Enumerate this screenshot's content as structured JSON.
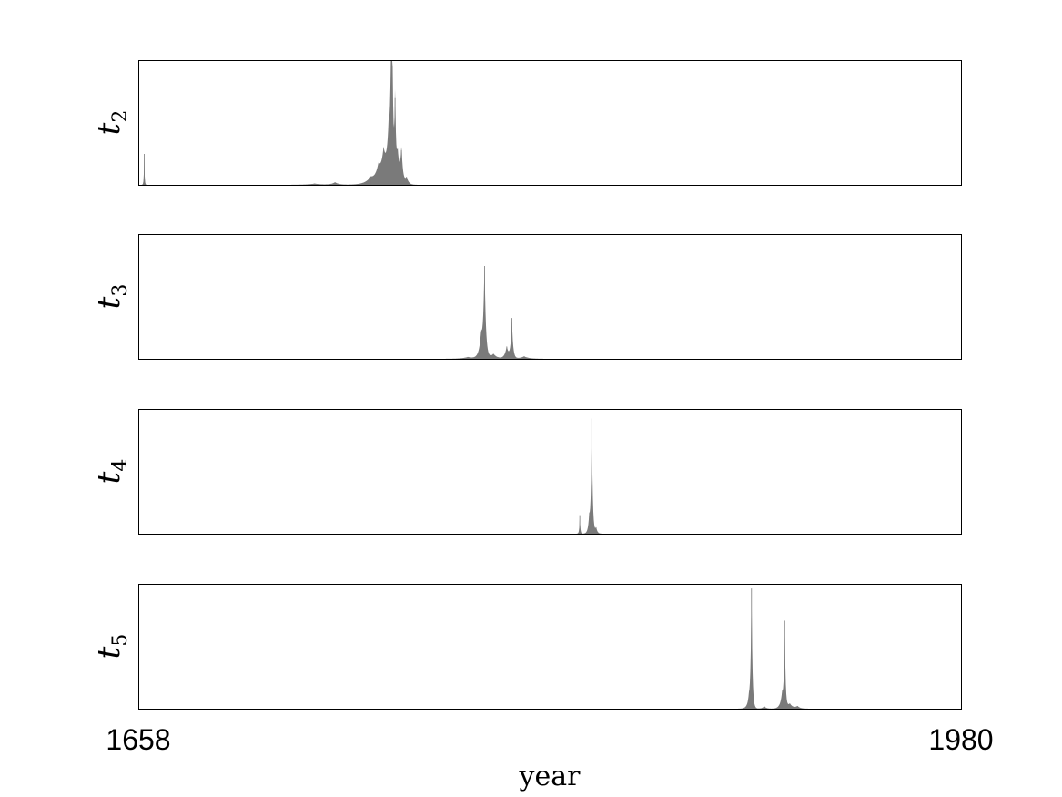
{
  "chart_data": {
    "type": "area",
    "xlabel": "year",
    "xlim": [
      1658,
      1980
    ],
    "x_tick_labels": [
      "1658",
      "1980"
    ],
    "fill_color": "#7a7a7a",
    "frame_color": "#000000",
    "grid": false,
    "legend": "none",
    "panels": [
      {
        "ylabel_base": "t",
        "ylabel_sub": "2",
        "ylim": [
          0,
          1
        ],
        "peaks": [
          {
            "year": 1660.3,
            "height": 0.25,
            "width": 0.15
          },
          {
            "year": 1727.0,
            "height": 0.01,
            "width": 3.0
          },
          {
            "year": 1735.0,
            "height": 0.02,
            "width": 1.5
          },
          {
            "year": 1749.0,
            "height": 0.05,
            "width": 2.5
          },
          {
            "year": 1752.0,
            "height": 0.12,
            "width": 1.5
          },
          {
            "year": 1754.0,
            "height": 0.22,
            "width": 1.2
          },
          {
            "year": 1756.0,
            "height": 0.38,
            "width": 1.0
          },
          {
            "year": 1757.0,
            "height": 1.0,
            "width": 0.45
          },
          {
            "year": 1757.4,
            "height": 0.85,
            "width": 0.3
          },
          {
            "year": 1758.5,
            "height": 0.7,
            "width": 0.3
          },
          {
            "year": 1759.5,
            "height": 0.25,
            "width": 0.9
          },
          {
            "year": 1761.0,
            "height": 0.28,
            "width": 0.5
          },
          {
            "year": 1763.0,
            "height": 0.06,
            "width": 0.8
          }
        ]
      },
      {
        "ylabel_base": "t",
        "ylabel_sub": "3",
        "ylim": [
          0,
          1
        ],
        "peaks": [
          {
            "year": 1787.0,
            "height": 0.015,
            "width": 2.5
          },
          {
            "year": 1792.2,
            "height": 0.18,
            "width": 0.9
          },
          {
            "year": 1793.5,
            "height": 0.75,
            "width": 0.5
          },
          {
            "year": 1797.0,
            "height": 0.04,
            "width": 1.5
          },
          {
            "year": 1802.2,
            "height": 0.1,
            "width": 0.8
          },
          {
            "year": 1804.2,
            "height": 0.33,
            "width": 0.45
          },
          {
            "year": 1809.0,
            "height": 0.02,
            "width": 2.0
          }
        ]
      },
      {
        "ylabel_base": "t",
        "ylabel_sub": "4",
        "ylim": [
          0,
          1
        ],
        "peaks": [
          {
            "year": 1830.8,
            "height": 0.15,
            "width": 0.2
          },
          {
            "year": 1834.5,
            "height": 0.12,
            "width": 0.5
          },
          {
            "year": 1835.5,
            "height": 0.93,
            "width": 0.35
          },
          {
            "year": 1837.2,
            "height": 0.05,
            "width": 0.5
          }
        ]
      },
      {
        "ylabel_base": "t",
        "ylabel_sub": "5",
        "ylim": [
          0,
          1
        ],
        "peaks": [
          {
            "year": 1897.0,
            "height": 0.08,
            "width": 0.8
          },
          {
            "year": 1898.0,
            "height": 0.97,
            "width": 0.35
          },
          {
            "year": 1903.0,
            "height": 0.02,
            "width": 0.8
          },
          {
            "year": 1910.0,
            "height": 0.12,
            "width": 0.8
          },
          {
            "year": 1911.0,
            "height": 0.71,
            "width": 0.3
          },
          {
            "year": 1913.0,
            "height": 0.04,
            "width": 1.2
          },
          {
            "year": 1916.0,
            "height": 0.02,
            "width": 1.0
          }
        ]
      }
    ]
  }
}
